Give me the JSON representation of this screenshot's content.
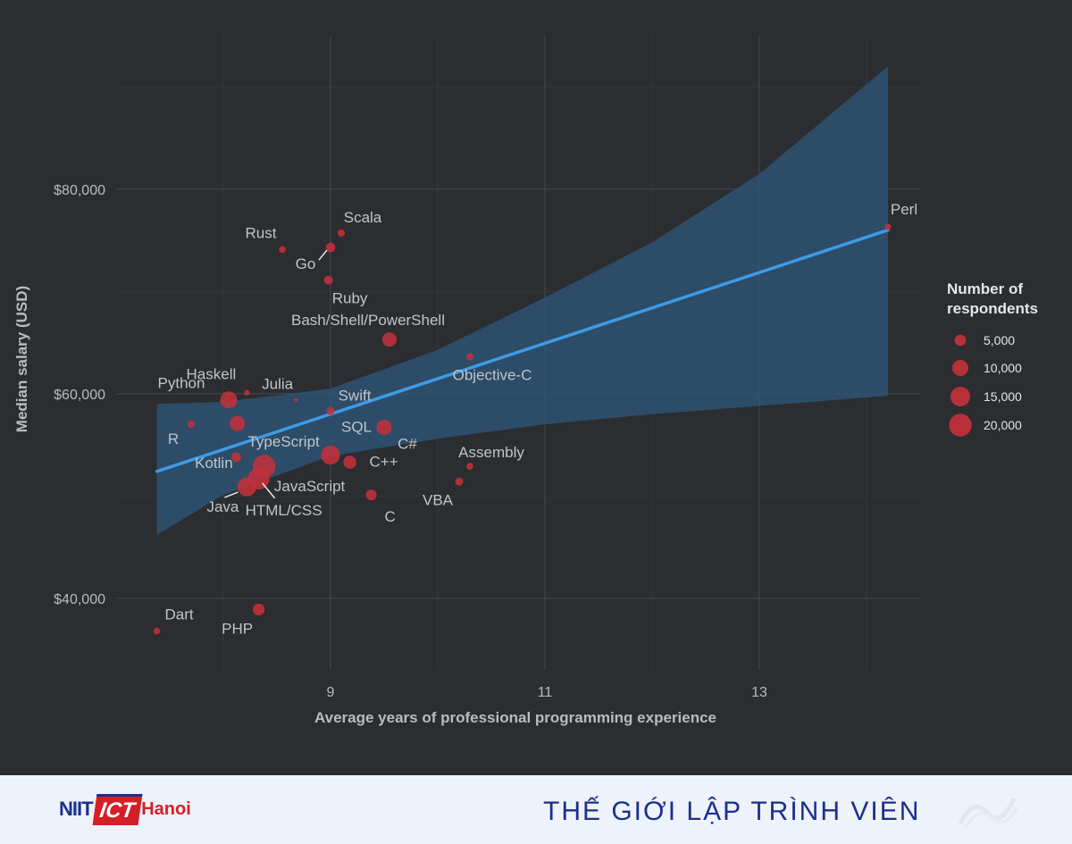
{
  "chart_data": {
    "type": "scatter",
    "title": "",
    "xlabel": "Average years of professional programming experience",
    "ylabel": "Median salary (USD)",
    "xlim": [
      7.0,
      14.5
    ],
    "ylim": [
      33000,
      95000
    ],
    "xticks": [
      9,
      11,
      13
    ],
    "xtick_labels": [
      "9",
      "11",
      "13"
    ],
    "yticks": [
      40000,
      60000,
      80000
    ],
    "ytick_labels": [
      "$40,000",
      "$60,000",
      "$80,000"
    ],
    "grid": true,
    "points": [
      {
        "name": "Perl",
        "x": 14.2,
        "y": 76300,
        "size": 1500
      },
      {
        "name": "Scala",
        "x": 9.1,
        "y": 75700,
        "size": 2000
      },
      {
        "name": "Rust",
        "x": 8.55,
        "y": 74100,
        "size": 1800
      },
      {
        "name": "Go",
        "x": 9.0,
        "y": 74300,
        "size": 3500
      },
      {
        "name": "Ruby",
        "x": 8.98,
        "y": 71100,
        "size": 3000
      },
      {
        "name": "Bash/Shell/PowerShell",
        "x": 9.55,
        "y": 65300,
        "size": 8000
      },
      {
        "name": "Objective-C",
        "x": 10.3,
        "y": 63600,
        "size": 2000
      },
      {
        "name": "Haskell",
        "x": 8.22,
        "y": 60100,
        "size": 1200
      },
      {
        "name": "Julia",
        "x": 8.68,
        "y": 59400,
        "size": 500
      },
      {
        "name": "Swift",
        "x": 9.0,
        "y": 58300,
        "size": 2500
      },
      {
        "name": "Python",
        "x": 8.05,
        "y": 59400,
        "size": 11000
      },
      {
        "name": "R",
        "x": 7.7,
        "y": 57000,
        "size": 2000
      },
      {
        "name": "C#",
        "x": 9.5,
        "y": 56700,
        "size": 9000
      },
      {
        "name": "TypeScript",
        "x": 8.13,
        "y": 57100,
        "size": 9000
      },
      {
        "name": "SQL",
        "x": 9.0,
        "y": 54000,
        "size": 14000
      },
      {
        "name": "C++",
        "x": 9.18,
        "y": 53300,
        "size": 6500
      },
      {
        "name": "Assembly",
        "x": 10.3,
        "y": 52900,
        "size": 1800
      },
      {
        "name": "Kotlin",
        "x": 8.12,
        "y": 53800,
        "size": 3500
      },
      {
        "name": "JavaScript",
        "x": 8.38,
        "y": 52900,
        "size": 20000
      },
      {
        "name": "HTML/CSS",
        "x": 8.33,
        "y": 51700,
        "size": 18000
      },
      {
        "name": "Java",
        "x": 8.22,
        "y": 50900,
        "size": 14000
      },
      {
        "name": "VBA",
        "x": 10.2,
        "y": 51400,
        "size": 2500
      },
      {
        "name": "C",
        "x": 9.38,
        "y": 50100,
        "size": 4500
      },
      {
        "name": "Dart",
        "x": 7.38,
        "y": 36800,
        "size": 1700
      },
      {
        "name": "PHP",
        "x": 8.33,
        "y": 38900,
        "size": 5500
      }
    ],
    "trend_line": {
      "x": [
        7.38,
        14.2
      ],
      "y": [
        52400,
        76000
      ]
    },
    "confidence_band": {
      "x": [
        7.38,
        8.0,
        9.0,
        10.0,
        11.0,
        12.0,
        13.0,
        14.2
      ],
      "upper": [
        59000,
        59200,
        60500,
        64300,
        69400,
        74800,
        81500,
        92000
      ],
      "lower": [
        46200,
        50100,
        53900,
        55600,
        57000,
        58000,
        58800,
        59800
      ]
    },
    "legend": {
      "title_line1": "Number of",
      "title_line2": "respondents",
      "placement": "right",
      "entries": [
        {
          "size": 5000,
          "label": "5,000"
        },
        {
          "size": 10000,
          "label": "10,000"
        },
        {
          "size": 15000,
          "label": "15,000"
        },
        {
          "size": 20000,
          "label": "20,000"
        }
      ]
    },
    "colors": {
      "point": "#c3313a",
      "trend": "#3d9be6",
      "band": "#2d5478",
      "grid": "#3d4044",
      "background": "#2b2d30"
    }
  },
  "footer": {
    "logo_niit": "NIIT",
    "logo_ict": "ICT",
    "logo_hanoi": "Hanoi",
    "slogan": "THẾ GIỚI LẬP TRÌNH VIÊN"
  }
}
